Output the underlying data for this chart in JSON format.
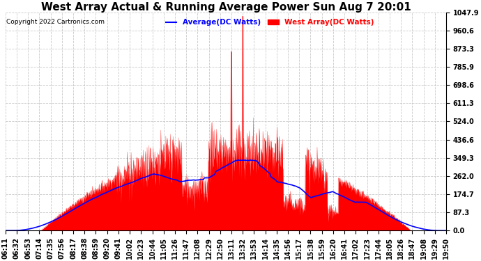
{
  "title": "West Array Actual & Running Average Power Sun Aug 7 20:01",
  "copyright": "Copyright 2022 Cartronics.com",
  "legend_avg": "Average(DC Watts)",
  "legend_west": "West Array(DC Watts)",
  "avg_color": "blue",
  "west_color": "red",
  "ymin": 0.0,
  "ymax": 1047.9,
  "yticks": [
    0.0,
    87.3,
    174.7,
    262.0,
    349.3,
    436.6,
    524.0,
    611.3,
    698.6,
    785.9,
    873.3,
    960.6,
    1047.9
  ],
  "xtick_labels": [
    "06:11",
    "06:32",
    "06:53",
    "07:14",
    "07:35",
    "07:56",
    "08:17",
    "08:38",
    "08:59",
    "09:20",
    "09:41",
    "10:02",
    "10:23",
    "10:44",
    "11:05",
    "11:26",
    "11:47",
    "12:08",
    "12:29",
    "12:50",
    "13:11",
    "13:32",
    "13:53",
    "14:14",
    "14:35",
    "14:56",
    "15:17",
    "15:38",
    "15:59",
    "16:20",
    "16:41",
    "17:02",
    "17:23",
    "17:44",
    "18:05",
    "18:26",
    "18:47",
    "19:08",
    "19:29",
    "19:50"
  ],
  "background_color": "#ffffff",
  "grid_color": "#bbbbbb",
  "title_fontsize": 11,
  "tick_fontsize": 7.0
}
